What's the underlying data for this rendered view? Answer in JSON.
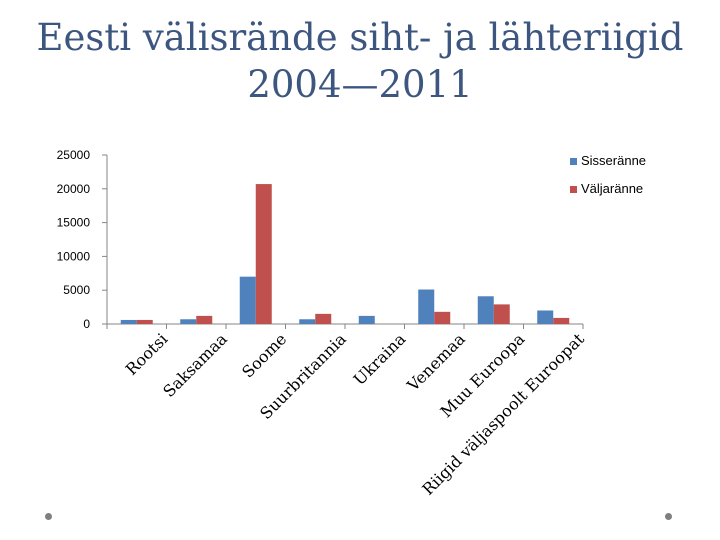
{
  "slide": {
    "title_line1": "Eesti välisrände siht- ja lähteriigid",
    "title_line2": "2004—2011"
  },
  "chart_data": {
    "type": "bar",
    "categories": [
      "Rootsi",
      "Saksamaa",
      "Soome",
      "Suurbritannia",
      "Ukraina",
      "Venemaa",
      "Muu Euroopa",
      "Riigid väljaspoolt Euroopat"
    ],
    "series": [
      {
        "name": "Sisseränne",
        "color": "#4f81bd",
        "values": [
          600,
          700,
          7000,
          700,
          1200,
          5100,
          4100,
          2000
        ]
      },
      {
        "name": "Väljaränne",
        "color": "#c0504d",
        "values": [
          600,
          1200,
          20700,
          1500,
          0,
          1800,
          2900,
          900
        ]
      }
    ],
    "ylim": [
      0,
      25000
    ],
    "yticks": [
      0,
      5000,
      10000,
      15000,
      20000,
      25000
    ],
    "grid": false,
    "legend": "right",
    "xlabel": "",
    "ylabel": ""
  }
}
